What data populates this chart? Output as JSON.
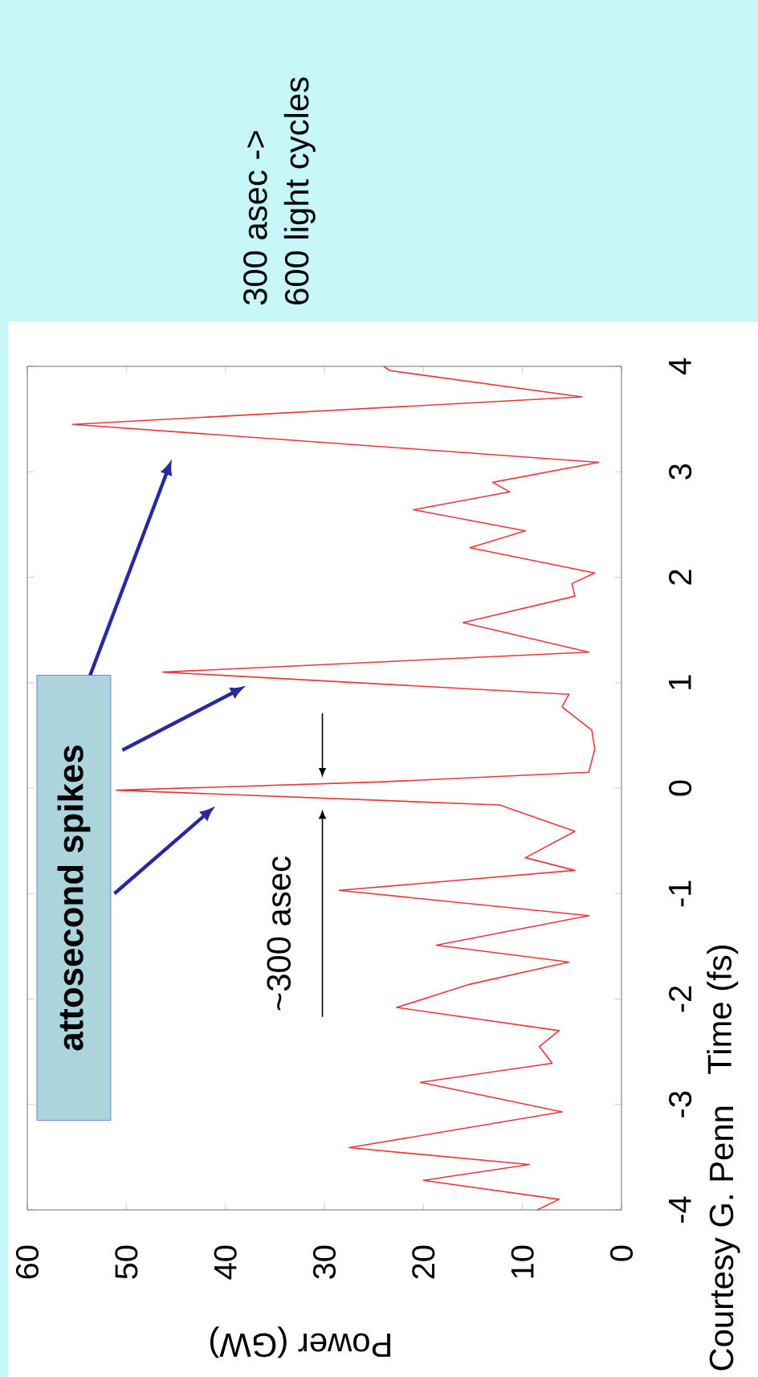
{
  "chart_data": {
    "type": "line",
    "xlabel": "Power (GW)",
    "ylabel": "Time (fs)",
    "x": [
      8.5,
      6.3,
      20,
      9.3,
      27.5,
      6,
      20.3,
      7,
      8.3,
      6.3,
      22.7,
      15.3,
      5.3,
      18.7,
      3.3,
      28.5,
      4.7,
      9.7,
      4.7,
      12.3,
      51,
      24,
      3.3,
      2.7,
      3,
      6,
      5.3,
      46.3,
      3.3,
      16,
      4.7,
      5,
      2.7,
      15.3,
      9.7,
      21,
      11.3,
      13,
      2.3,
      55.4,
      4,
      23.4,
      24
    ],
    "values": [
      -4,
      -3.9,
      -3.72,
      -3.57,
      -3.41,
      -3.07,
      -2.79,
      -2.61,
      -2.45,
      -2.3,
      -2.08,
      -1.86,
      -1.65,
      -1.49,
      -1.21,
      -0.97,
      -0.78,
      -0.66,
      -0.41,
      -0.16,
      -0.02,
      0.06,
      0.15,
      0.37,
      0.55,
      0.77,
      0.89,
      1.1,
      1.29,
      1.57,
      1.82,
      1.94,
      2.04,
      2.28,
      2.44,
      2.64,
      2.81,
      2.9,
      3.09,
      3.45,
      3.71,
      3.96,
      4
    ],
    "color": "#e8383d",
    "xlim": [
      60,
      0
    ],
    "ylim": [
      -4,
      4
    ],
    "xticks": [
      0,
      10,
      20,
      30,
      40,
      50,
      60
    ],
    "yticks": [
      -4,
      -3,
      -2,
      -1,
      0,
      1,
      2,
      3,
      4
    ],
    "annotations": [
      "attosecond spikes",
      "~300 asec",
      "300 asec ->",
      "600 light cycles",
      "Courtesy G. Penn"
    ]
  }
}
